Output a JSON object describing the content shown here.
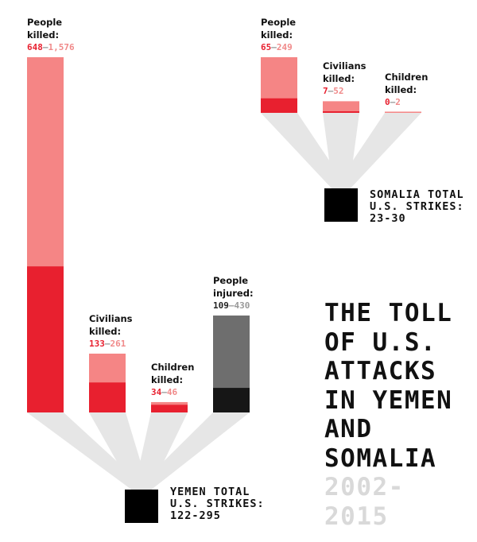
{
  "colors": {
    "killed_min": "#e8202f",
    "killed_max": "#f58585",
    "injured_min": "#161616",
    "injured_max": "#6e6e6e",
    "funnel": "#e6e6e6",
    "strike_box": "#000000",
    "years": "#d9d9d9"
  },
  "headline": {
    "lines": [
      "THE TOLL",
      "OF U.S.",
      "ATTACKS",
      "IN YEMEN",
      "AND",
      "SOMALIA"
    ],
    "years_lines": [
      "2002-",
      "2015"
    ]
  },
  "chart_data": [
    {
      "type": "bar",
      "country": "Yemen",
      "total_label": [
        "YEMEN TOTAL",
        "U.S. STRIKES:",
        "122-295"
      ],
      "strikes": {
        "min": 122,
        "max": 295
      },
      "categories": [
        {
          "label": [
            "People",
            "killed:"
          ],
          "min": 648,
          "max": 1576,
          "min_text": "648",
          "max_text": "1,576",
          "color": "red"
        },
        {
          "label": [
            "Civilians",
            "killed:"
          ],
          "min": 133,
          "max": 261,
          "min_text": "133",
          "max_text": "261",
          "color": "red"
        },
        {
          "label": [
            "Children",
            "killed:"
          ],
          "min": 34,
          "max": 46,
          "min_text": "34",
          "max_text": "46",
          "color": "red"
        },
        {
          "label": [
            "People",
            "injured:"
          ],
          "min": 109,
          "max": 430,
          "min_text": "109",
          "max_text": "430",
          "color": "gray"
        }
      ]
    },
    {
      "type": "bar",
      "country": "Somalia",
      "total_label": [
        "SOMALIA TOTAL",
        "U.S. STRIKES:",
        "23-30"
      ],
      "strikes": {
        "min": 23,
        "max": 30
      },
      "categories": [
        {
          "label": [
            "People",
            "killed:"
          ],
          "min": 65,
          "max": 249,
          "min_text": "65",
          "max_text": "249",
          "color": "red"
        },
        {
          "label": [
            "Civilians",
            "killed:"
          ],
          "min": 7,
          "max": 52,
          "min_text": "7",
          "max_text": "52",
          "color": "red"
        },
        {
          "label": [
            "Children",
            "killed:"
          ],
          "min": 0,
          "max": 2,
          "min_text": "0",
          "max_text": "2",
          "color": "red"
        }
      ]
    }
  ]
}
